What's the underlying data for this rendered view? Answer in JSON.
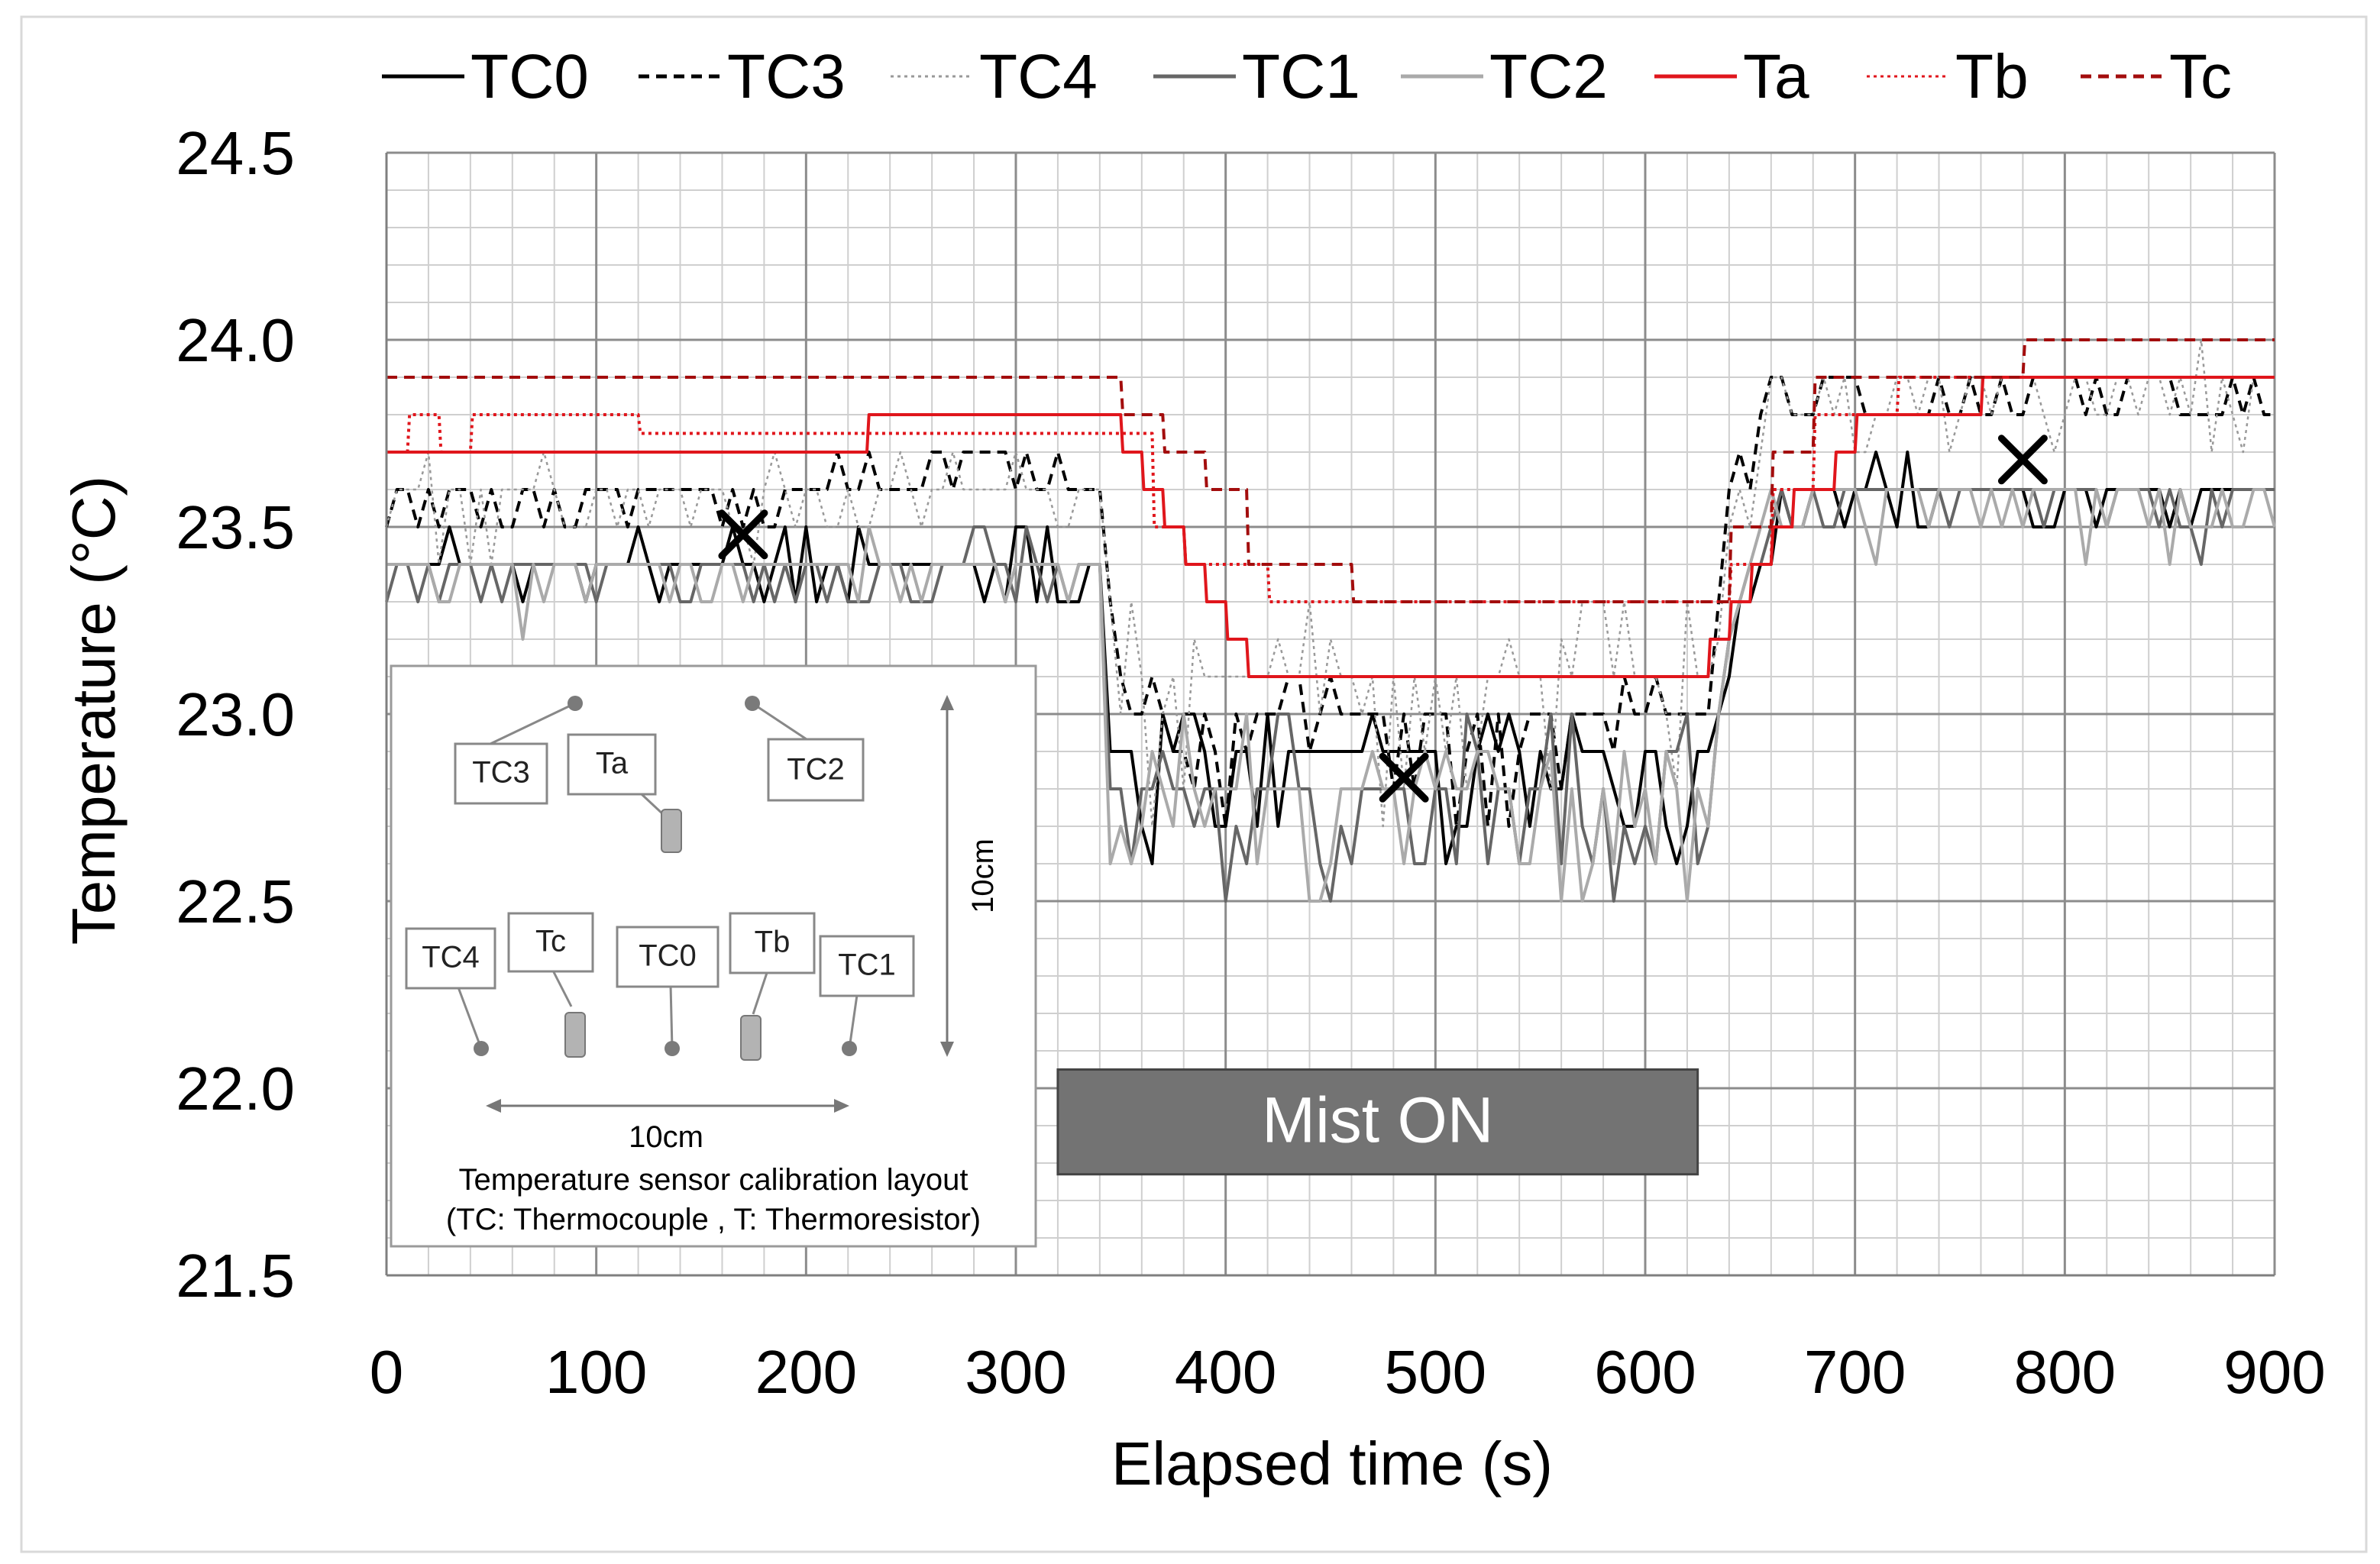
{
  "chart_data": {
    "type": "line",
    "title": "",
    "xlabel": "Elapsed time (s)",
    "ylabel": "Temperature (°C)",
    "xlim": [
      0,
      900
    ],
    "ylim": [
      21.5,
      24.5
    ],
    "x_ticks": [
      0,
      100,
      200,
      300,
      400,
      500,
      600,
      700,
      800,
      900
    ],
    "y_ticks": [
      24.5,
      24.0,
      23.5,
      23.0,
      22.5,
      22.0,
      21.5
    ],
    "x_tick_labels": [
      "0",
      "100",
      "200",
      "300",
      "400",
      "500",
      "600",
      "700",
      "800",
      "900"
    ],
    "y_tick_labels": [
      "24.5",
      "24.0",
      "23.5",
      "23.0",
      "22.5",
      "22.0",
      "21.5"
    ],
    "grid": true,
    "legend_position": "top",
    "series": [
      {
        "name": "TC0",
        "color": "#000000",
        "style": "solid",
        "noise": 0.1,
        "x": [
          0,
          330,
          340,
          345,
          630,
          640,
          660,
          680,
          700,
          740,
          900
        ],
        "y": [
          23.4,
          23.4,
          23.4,
          22.85,
          22.85,
          23.2,
          23.5,
          23.6,
          23.6,
          23.6,
          23.6
        ]
      },
      {
        "name": "TC3",
        "color": "#000000",
        "style": "dashed",
        "noise": 0.1,
        "x": [
          0,
          200,
          220,
          330,
          340,
          350,
          630,
          640,
          660,
          680,
          700,
          900
        ],
        "y": [
          23.55,
          23.55,
          23.65,
          23.65,
          23.6,
          22.95,
          22.95,
          23.55,
          23.85,
          23.85,
          23.85,
          23.85
        ]
      },
      {
        "name": "TC4",
        "color": "#999999",
        "style": "dotted",
        "noise": 0.15,
        "x": [
          0,
          330,
          340,
          350,
          630,
          640,
          660,
          680,
          700,
          900
        ],
        "y": [
          23.55,
          23.6,
          23.6,
          23.05,
          23.05,
          23.5,
          23.85,
          23.9,
          23.85,
          23.85
        ]
      },
      {
        "name": "TC1",
        "color": "#666666",
        "style": "solid",
        "noise": 0.12,
        "x": [
          0,
          330,
          340,
          345,
          630,
          640,
          660,
          680,
          700,
          900
        ],
        "y": [
          23.35,
          23.4,
          23.4,
          22.8,
          22.8,
          23.2,
          23.5,
          23.55,
          23.55,
          23.55
        ]
      },
      {
        "name": "TC2",
        "color": "#aaaaaa",
        "style": "solid",
        "noise": 0.12,
        "x": [
          0,
          330,
          340,
          345,
          630,
          640,
          660,
          680,
          700,
          900
        ],
        "y": [
          23.35,
          23.4,
          23.4,
          22.75,
          22.75,
          23.2,
          23.5,
          23.55,
          23.55,
          23.55
        ]
      },
      {
        "name": "Ta",
        "color": "#e0161c",
        "style": "solid",
        "noise": 0,
        "x": [
          0,
          199,
          200,
          229,
          230,
          339,
          340,
          350,
          351,
          360,
          361,
          370,
          371,
          380,
          381,
          390,
          391,
          400,
          401,
          410,
          411,
          630,
          631,
          640,
          641,
          650,
          651,
          660,
          661,
          670,
          671,
          690,
          691,
          700,
          701,
          760,
          761,
          790,
          791,
          900
        ],
        "y": [
          23.7,
          23.7,
          23.7,
          23.7,
          23.8,
          23.8,
          23.8,
          23.8,
          23.7,
          23.7,
          23.6,
          23.6,
          23.5,
          23.5,
          23.4,
          23.4,
          23.3,
          23.3,
          23.2,
          23.2,
          23.1,
          23.1,
          23.2,
          23.2,
          23.3,
          23.3,
          23.4,
          23.4,
          23.5,
          23.5,
          23.6,
          23.6,
          23.7,
          23.7,
          23.8,
          23.8,
          23.9,
          23.9,
          23.9,
          23.9
        ]
      },
      {
        "name": "Tb",
        "color": "#e0161c",
        "style": "dotted",
        "noise": 0,
        "x": [
          0,
          10,
          11,
          25,
          26,
          40,
          41,
          55,
          56,
          120,
          121,
          340,
          341,
          365,
          366,
          380,
          381,
          420,
          421,
          640,
          641,
          660,
          661,
          680,
          681,
          720,
          721,
          900
        ],
        "y": [
          23.7,
          23.7,
          23.8,
          23.8,
          23.7,
          23.7,
          23.8,
          23.8,
          23.8,
          23.8,
          23.75,
          23.75,
          23.75,
          23.75,
          23.5,
          23.5,
          23.4,
          23.4,
          23.3,
          23.3,
          23.4,
          23.4,
          23.6,
          23.6,
          23.8,
          23.8,
          23.9,
          23.9
        ]
      },
      {
        "name": "Tc",
        "color": "#a30d0d",
        "style": "dashed",
        "noise": 0,
        "x": [
          0,
          350,
          351,
          370,
          371,
          390,
          391,
          410,
          411,
          460,
          461,
          640,
          641,
          660,
          661,
          680,
          681,
          760,
          761,
          780,
          781,
          900
        ],
        "y": [
          23.9,
          23.9,
          23.8,
          23.8,
          23.7,
          23.7,
          23.6,
          23.6,
          23.4,
          23.4,
          23.3,
          23.3,
          23.5,
          23.5,
          23.7,
          23.7,
          23.9,
          23.9,
          23.9,
          23.9,
          24.0,
          24.0
        ]
      }
    ],
    "markers": [
      {
        "label": "x",
        "x": 170,
        "y": 23.48
      },
      {
        "label": "x",
        "x": 485,
        "y": 22.83
      },
      {
        "label": "x",
        "x": 780,
        "y": 23.68
      }
    ],
    "annotations": {
      "mist_bar": {
        "label": "Mist ON",
        "x_start": 320,
        "x_end": 625,
        "y_top": 22.05,
        "y_bottom": 21.77,
        "color": "#737373"
      }
    },
    "inset": {
      "caption_line1": "Temperature sensor calibration layout",
      "caption_line2": "(TC: Thermocouple , T: Thermoresistor)",
      "width_label": "10cm",
      "height_label": "10cm",
      "sensor_labels": [
        "TC3",
        "Ta",
        "TC2",
        "TC4",
        "Tc",
        "TC0",
        "Tb",
        "TC1"
      ]
    }
  }
}
